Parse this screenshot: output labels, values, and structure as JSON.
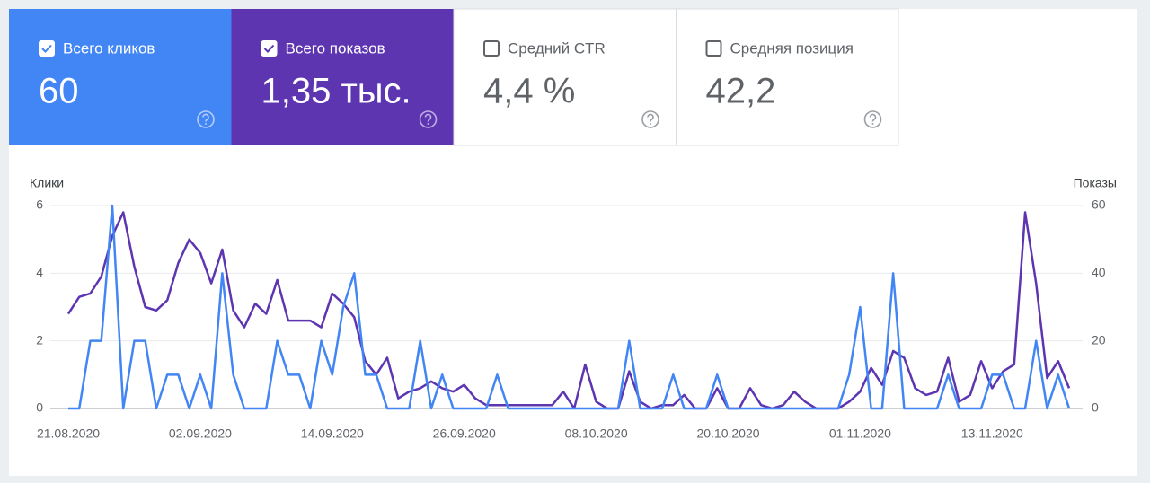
{
  "metrics": [
    {
      "label": "Всего кликов",
      "value": "60",
      "checked": true,
      "color": "#4285f4"
    },
    {
      "label": "Всего показов",
      "value": "1,35 тыс.",
      "checked": true,
      "color": "#5e35b1"
    },
    {
      "label": "Средний CTR",
      "value": "4,4 %",
      "checked": false,
      "color": "#ffffff"
    },
    {
      "label": "Средняя позиция",
      "value": "42,2",
      "checked": false,
      "color": "#ffffff"
    }
  ],
  "chart_data": {
    "type": "line",
    "y_label": "Клики",
    "y2_label": "Показы",
    "categories": [
      "21.08.2020",
      null,
      null,
      null,
      null,
      null,
      null,
      null,
      null,
      null,
      null,
      null,
      "02.09.2020",
      null,
      null,
      null,
      null,
      null,
      null,
      null,
      null,
      null,
      null,
      null,
      "14.09.2020",
      null,
      null,
      null,
      null,
      null,
      null,
      null,
      null,
      null,
      null,
      null,
      "26.09.2020",
      null,
      null,
      null,
      null,
      null,
      null,
      null,
      null,
      null,
      null,
      null,
      "08.10.2020",
      null,
      null,
      null,
      null,
      null,
      null,
      null,
      null,
      null,
      null,
      null,
      "20.10.2020",
      null,
      null,
      null,
      null,
      null,
      null,
      null,
      null,
      null,
      null,
      null,
      "01.11.2020",
      null,
      null,
      null,
      null,
      null,
      null,
      null,
      null,
      null,
      null,
      null,
      "13.11.2020",
      null,
      null,
      null,
      null,
      null,
      null,
      null
    ],
    "ylim": [
      0,
      6
    ],
    "yticks": [
      0,
      2,
      4,
      6
    ],
    "y2lim": [
      0,
      60
    ],
    "y2ticks": [
      0,
      20,
      40,
      60
    ],
    "grid": true,
    "series": [
      {
        "color": "#5e35b1",
        "axis": "y2",
        "values": [
          28,
          33,
          34,
          39,
          51,
          58,
          42,
          30,
          29,
          32,
          43,
          50,
          46,
          37,
          47,
          29,
          24,
          31,
          28,
          38,
          26,
          26,
          26,
          24,
          34,
          31,
          27,
          14,
          10,
          15,
          3,
          5,
          6,
          8,
          6,
          5,
          7,
          3,
          1,
          1,
          1,
          1,
          1,
          1,
          1,
          5,
          0,
          13,
          2,
          0,
          0,
          11,
          2,
          0,
          1,
          1,
          4,
          0,
          0,
          6,
          0,
          0,
          6,
          1,
          0,
          1,
          5,
          2,
          0,
          0,
          0,
          2,
          5,
          12,
          7,
          17,
          15,
          6,
          4,
          5,
          15,
          2,
          4,
          14,
          6,
          11,
          13,
          58,
          37,
          9,
          14,
          6
        ]
      },
      {
        "color": "#4285f4",
        "values": [
          0,
          0,
          2,
          2,
          6,
          0,
          2,
          2,
          0,
          1,
          1,
          0,
          1,
          0,
          4,
          1,
          0,
          0,
          0,
          2,
          1,
          1,
          0,
          2,
          1,
          3,
          4,
          1,
          1,
          0,
          0,
          0,
          2,
          0,
          1,
          0,
          0,
          0,
          0,
          1,
          0,
          0,
          0,
          0,
          0,
          0,
          0,
          0,
          0,
          0,
          0,
          2,
          0,
          0,
          0,
          1,
          0,
          0,
          0,
          1,
          0,
          0,
          0,
          0,
          0,
          0,
          0,
          0,
          0,
          0,
          0,
          1,
          3,
          0,
          0,
          4,
          0,
          0,
          0,
          0,
          1,
          0,
          0,
          0,
          1,
          1,
          0,
          0,
          2,
          0,
          1,
          0
        ]
      }
    ]
  }
}
